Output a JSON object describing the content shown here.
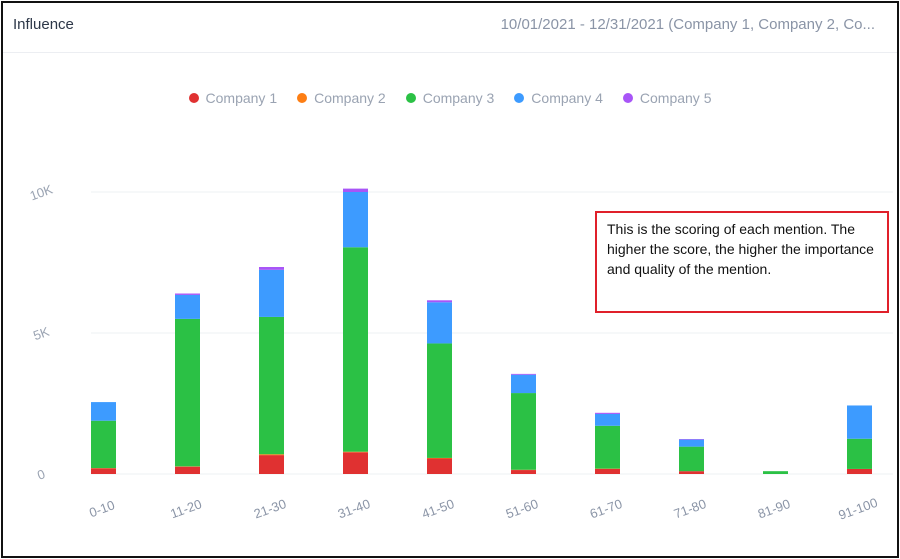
{
  "header": {
    "title": "Influence",
    "range": "10/01/2021 - 12/31/2021 (Company 1, Company 2, Co..."
  },
  "annotation": "This is the scoring of each mention. The higher the score, the higher the importance and quality of the mention.",
  "chart_data": {
    "type": "bar",
    "stacked": true,
    "categories": [
      "0-10",
      "11-20",
      "21-30",
      "31-40",
      "41-50",
      "51-60",
      "61-70",
      "71-80",
      "81-90",
      "91-100"
    ],
    "series": [
      {
        "name": "Company 1",
        "color": "#e03131",
        "values": [
          200,
          260,
          670,
          770,
          550,
          140,
          180,
          100,
          0,
          180
        ]
      },
      {
        "name": "Company 2",
        "color": "#fd7e14",
        "values": [
          10,
          10,
          30,
          20,
          20,
          10,
          10,
          0,
          0,
          0
        ]
      },
      {
        "name": "Company 3",
        "color": "#2bc145",
        "values": [
          1680,
          5230,
          4870,
          7250,
          4060,
          2720,
          1520,
          870,
          100,
          1070
        ]
      },
      {
        "name": "Company 4",
        "color": "#3d9bff",
        "values": [
          660,
          850,
          1670,
          1960,
          1460,
          650,
          420,
          250,
          0,
          1180
        ]
      },
      {
        "name": "Company 5",
        "color": "#a855f7",
        "values": [
          0,
          50,
          100,
          120,
          70,
          30,
          40,
          20,
          0,
          0
        ]
      }
    ],
    "yticks": [
      "0",
      "5K",
      "10K"
    ],
    "ytick_values": [
      0,
      5000,
      10000
    ],
    "ylim": [
      0,
      10000
    ],
    "grid": true,
    "legend_position": "top"
  }
}
